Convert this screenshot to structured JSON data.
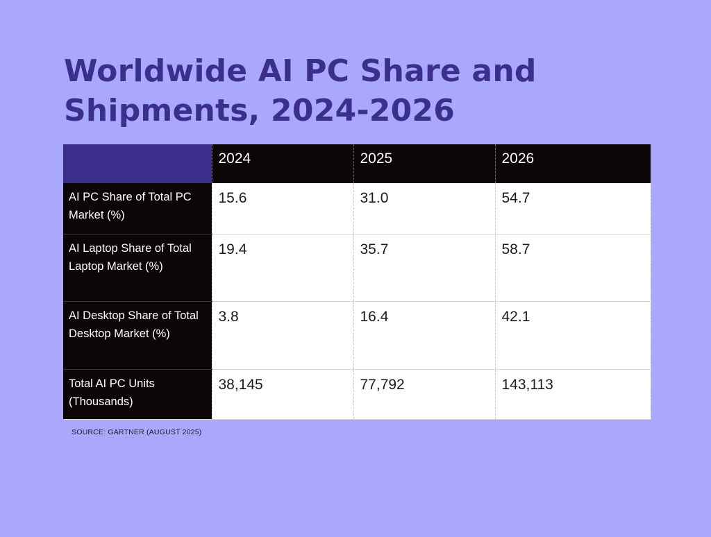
{
  "title": "Worldwide AI PC Share and Shipments, 2024-2026",
  "source": "SOURCE: GARTNER (AUGUST 2025)",
  "colors": {
    "background": "#a9a8fd",
    "title": "#3b2f8e",
    "header_corner": "#3b2d8a",
    "header_bg": "#0c0607"
  },
  "chart_data": {
    "type": "table",
    "title": "Worldwide AI PC Share and Shipments, 2024-2026",
    "columns": [
      "2024",
      "2025",
      "2026"
    ],
    "rows": [
      {
        "label": "AI PC Share of Total PC Market (%)",
        "values": [
          "15.6",
          "31.0",
          "54.7"
        ]
      },
      {
        "label": "AI Laptop Share of Total Laptop Market (%)",
        "values": [
          "19.4",
          "35.7",
          "58.7"
        ]
      },
      {
        "label": "AI Desktop Share of Total Desktop Market (%)",
        "values": [
          "3.8",
          "16.4",
          "42.1"
        ]
      },
      {
        "label": "Total AI PC Units (Thousands)",
        "values": [
          "38,145",
          "77,792",
          "143,113"
        ]
      }
    ],
    "source": "SOURCE: GARTNER (AUGUST 2025)"
  }
}
